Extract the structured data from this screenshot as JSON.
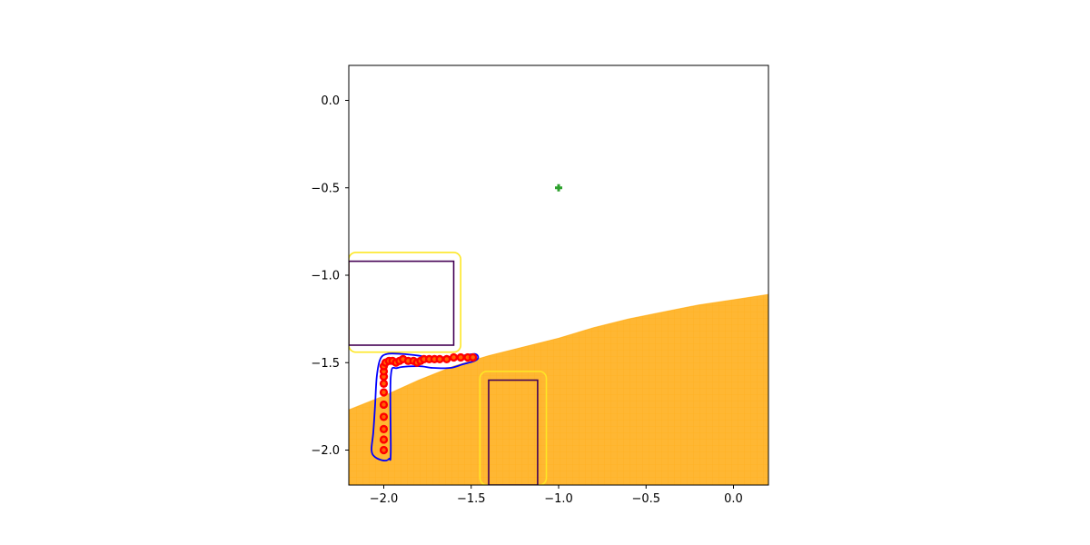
{
  "chart_data": {
    "type": "scatter",
    "title": "",
    "xlabel": "",
    "ylabel": "",
    "xlim": [
      -2.2,
      0.2
    ],
    "ylim": [
      -2.2,
      0.2
    ],
    "grid": false,
    "x_ticks": [
      -2.0,
      -1.5,
      -1.0,
      -0.5,
      0.0
    ],
    "y_ticks": [
      0.0,
      -0.5,
      -1.0,
      -1.5,
      -2.0
    ],
    "x_tick_labels": [
      "−2.0",
      "−1.5",
      "−1.0",
      "−0.5",
      "0.0"
    ],
    "y_tick_labels": [
      "0.0",
      "−0.5",
      "−1.0",
      "−1.5",
      "−2.0"
    ],
    "colors": {
      "region": "#ffb733",
      "region_edge": "#ffa500",
      "obstacle": "#440154",
      "obstacle_margin": "#fde725",
      "tube": "#0000ff",
      "trajectory": "#ff0000",
      "trajectory_inner": "#ff8c00",
      "goal": "#2ca02c"
    },
    "shaded_region_boundary": [
      [
        -2.2,
        -1.77
      ],
      [
        -2.0,
        -1.69
      ],
      [
        -1.8,
        -1.6
      ],
      [
        -1.6,
        -1.52
      ],
      [
        -1.4,
        -1.46
      ],
      [
        -1.2,
        -1.41
      ],
      [
        -1.0,
        -1.36
      ],
      [
        -0.8,
        -1.3
      ],
      [
        -0.6,
        -1.25
      ],
      [
        -0.4,
        -1.21
      ],
      [
        -0.2,
        -1.17
      ],
      [
        0.0,
        -1.14
      ],
      [
        0.2,
        -1.11
      ]
    ],
    "obstacles": [
      {
        "x": [
          -2.2,
          -1.6
        ],
        "y": [
          -1.4,
          -0.92
        ]
      },
      {
        "x": [
          -1.4,
          -1.12
        ],
        "y": [
          -2.2,
          -1.6
        ]
      }
    ],
    "obstacle_margins": [
      {
        "x": [
          -2.2,
          -1.56
        ],
        "y": [
          -1.44,
          -0.87
        ],
        "radius": 0.04
      },
      {
        "x": [
          -1.45,
          -1.07
        ],
        "y": [
          -2.2,
          -1.55
        ],
        "radius": 0.04
      }
    ],
    "tube": [
      [
        -1.96,
        -2.01
      ],
      [
        -1.96,
        -1.58
      ],
      [
        -1.92,
        -1.53
      ],
      [
        -1.8,
        -1.52
      ],
      [
        -1.72,
        -1.53
      ],
      [
        -1.62,
        -1.53
      ],
      [
        -1.55,
        -1.51
      ],
      [
        -1.48,
        -1.49
      ],
      [
        -1.46,
        -1.47
      ],
      [
        -1.48,
        -1.45
      ],
      [
        -1.55,
        -1.46
      ],
      [
        -1.65,
        -1.47
      ],
      [
        -1.75,
        -1.47
      ],
      [
        -1.8,
        -1.46
      ],
      [
        -1.9,
        -1.45
      ],
      [
        -1.98,
        -1.45
      ],
      [
        -2.02,
        -1.48
      ],
      [
        -2.04,
        -1.58
      ],
      [
        -2.05,
        -1.75
      ],
      [
        -2.06,
        -1.9
      ],
      [
        -2.07,
        -2.0
      ],
      [
        -2.05,
        -2.04
      ],
      [
        -2.0,
        -2.06
      ],
      [
        -1.97,
        -2.05
      ]
    ],
    "trajectory": [
      [
        -2.0,
        -2.0
      ],
      [
        -2.0,
        -1.94
      ],
      [
        -2.0,
        -1.88
      ],
      [
        -2.0,
        -1.81
      ],
      [
        -2.0,
        -1.74
      ],
      [
        -2.0,
        -1.67
      ],
      [
        -2.0,
        -1.62
      ],
      [
        -2.0,
        -1.58
      ],
      [
        -2.0,
        -1.55
      ],
      [
        -2.0,
        -1.52
      ],
      [
        -1.99,
        -1.5
      ],
      [
        -1.97,
        -1.49
      ],
      [
        -1.95,
        -1.49
      ],
      [
        -1.93,
        -1.5
      ],
      [
        -1.91,
        -1.49
      ],
      [
        -1.89,
        -1.48
      ],
      [
        -1.86,
        -1.49
      ],
      [
        -1.83,
        -1.49
      ],
      [
        -1.81,
        -1.5
      ],
      [
        -1.79,
        -1.49
      ],
      [
        -1.77,
        -1.48
      ],
      [
        -1.74,
        -1.48
      ],
      [
        -1.71,
        -1.48
      ],
      [
        -1.68,
        -1.48
      ],
      [
        -1.64,
        -1.48
      ],
      [
        -1.6,
        -1.47
      ],
      [
        -1.56,
        -1.47
      ],
      [
        -1.52,
        -1.47
      ],
      [
        -1.49,
        -1.47
      ]
    ],
    "goal": {
      "x": -1.0,
      "y": -0.5
    }
  }
}
